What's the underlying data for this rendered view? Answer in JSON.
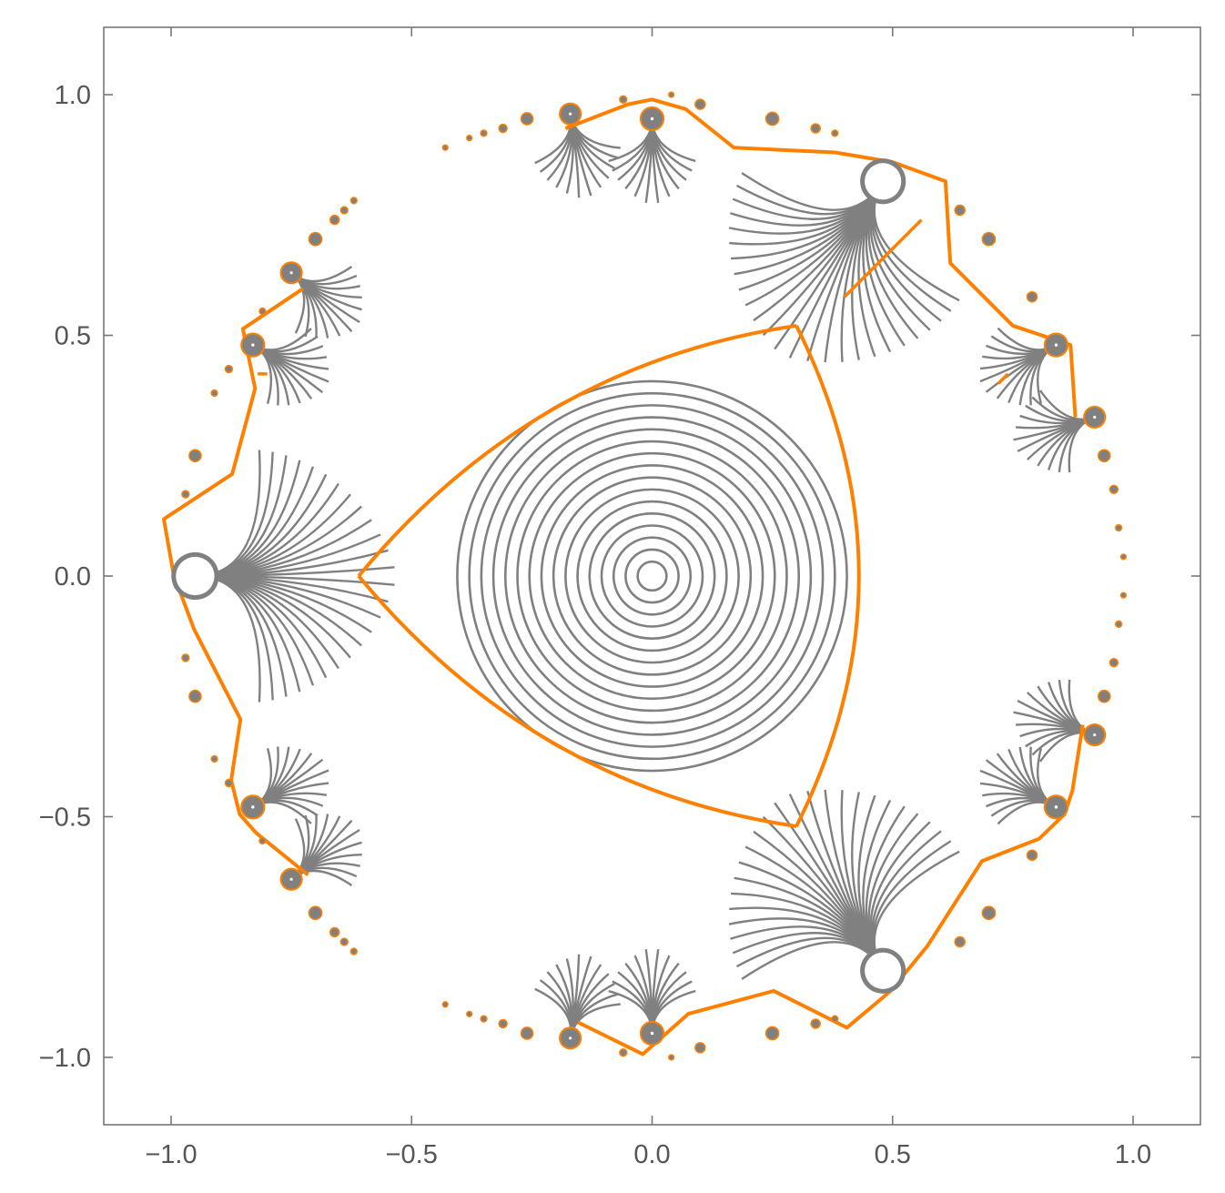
{
  "chart_data": {
    "type": "contour",
    "title": "",
    "xlabel": "",
    "ylabel": "",
    "xlim": [
      -1.14,
      1.14
    ],
    "ylim": [
      -1.14,
      1.14
    ],
    "grid": false,
    "legend": "none",
    "x_ticks": [
      {
        "value": -1.0,
        "label": "−1.0"
      },
      {
        "value": -0.5,
        "label": "−0.5"
      },
      {
        "value": 0.0,
        "label": "0.0"
      },
      {
        "value": 0.5,
        "label": "0.5"
      },
      {
        "value": 1.0,
        "label": "1.0"
      }
    ],
    "y_ticks": [
      {
        "value": 1.0,
        "label": "1.0"
      },
      {
        "value": 0.5,
        "label": "0.5"
      },
      {
        "value": 0.0,
        "label": "0.0"
      },
      {
        "value": -0.5,
        "label": "−0.5"
      },
      {
        "value": -1.0,
        "label": "−1.0"
      }
    ],
    "colors": {
      "contours": "#808080",
      "separatrix": "#ff8000",
      "frame": "#777777"
    },
    "series": [
      {
        "role": "contour-lines",
        "color": "#808080",
        "center": [
          0.0,
          0.0
        ],
        "level_radii": [
          0.03,
          0.055,
          0.08,
          0.105,
          0.13,
          0.155,
          0.18,
          0.205,
          0.23,
          0.255,
          0.28,
          0.305,
          0.33,
          0.355,
          0.38,
          0.405
        ]
      },
      {
        "role": "separatrix-triangle",
        "color": "#ff8000",
        "vertices": [
          [
            -0.61,
            0.0
          ],
          [
            0.3,
            0.52
          ],
          [
            0.3,
            -0.52
          ]
        ],
        "edge_midpoints": [
          [
            -0.2,
            0.35
          ],
          [
            0.43,
            0.0
          ],
          [
            -0.2,
            -0.35
          ]
        ]
      },
      {
        "role": "boundary-curve",
        "color": "#ff8000",
        "points": [
          [
            -0.18,
            0.93
          ],
          [
            -0.05,
            0.98
          ],
          [
            0.0,
            0.99
          ],
          [
            0.07,
            0.97
          ],
          [
            0.17,
            0.89
          ],
          [
            0.38,
            0.88
          ],
          [
            0.5,
            0.86
          ],
          [
            0.61,
            0.82
          ],
          [
            0.62,
            0.65
          ],
          [
            0.75,
            0.52
          ],
          [
            0.87,
            0.48
          ],
          [
            0.88,
            0.33
          ]
        ]
      },
      {
        "role": "rotation-mark",
        "color": "#ff8000",
        "points": [
          [
            -0.82,
            0.42
          ],
          [
            -0.8,
            0.42
          ],
          [
            0.56,
            0.74
          ],
          [
            0.4,
            0.58
          ],
          [
            0.74,
            0.42
          ],
          [
            0.72,
            0.4
          ]
        ]
      }
    ],
    "points": [
      {
        "x": -0.95,
        "y": 0.0,
        "r": 0.04,
        "kind": "hole"
      },
      {
        "x": 0.48,
        "y": 0.82,
        "r": 0.038,
        "kind": "hole"
      },
      {
        "x": 0.48,
        "y": -0.82,
        "r": 0.038,
        "kind": "hole"
      },
      {
        "x": 0.0,
        "y": 0.95,
        "r": 0.022,
        "kind": "blob"
      },
      {
        "x": 0.0,
        "y": -0.95,
        "r": 0.022,
        "kind": "blob"
      },
      {
        "x": -0.83,
        "y": 0.48,
        "r": 0.022,
        "kind": "blob"
      },
      {
        "x": -0.83,
        "y": -0.48,
        "r": 0.022,
        "kind": "blob"
      },
      {
        "x": 0.84,
        "y": 0.48,
        "r": 0.022,
        "kind": "blob"
      },
      {
        "x": 0.84,
        "y": -0.48,
        "r": 0.022,
        "kind": "blob"
      },
      {
        "x": -0.75,
        "y": 0.63,
        "r": 0.02,
        "kind": "blob"
      },
      {
        "x": -0.75,
        "y": -0.63,
        "r": 0.02,
        "kind": "blob"
      },
      {
        "x": -0.17,
        "y": 0.96,
        "r": 0.02,
        "kind": "blob"
      },
      {
        "x": -0.17,
        "y": -0.96,
        "r": 0.02,
        "kind": "blob"
      },
      {
        "x": 0.92,
        "y": 0.33,
        "r": 0.02,
        "kind": "blob"
      },
      {
        "x": 0.92,
        "y": -0.33,
        "r": 0.02,
        "kind": "blob"
      },
      {
        "x": -0.7,
        "y": 0.7,
        "r": 0.012,
        "kind": "dot"
      },
      {
        "x": -0.7,
        "y": -0.7,
        "r": 0.012,
        "kind": "dot"
      },
      {
        "x": -0.66,
        "y": 0.74,
        "r": 0.008,
        "kind": "dot"
      },
      {
        "x": -0.66,
        "y": -0.74,
        "r": 0.008,
        "kind": "dot"
      },
      {
        "x": -0.64,
        "y": 0.76,
        "r": 0.006,
        "kind": "dot"
      },
      {
        "x": -0.64,
        "y": -0.76,
        "r": 0.006,
        "kind": "dot"
      },
      {
        "x": -0.62,
        "y": 0.78,
        "r": 0.005,
        "kind": "dot"
      },
      {
        "x": -0.62,
        "y": -0.78,
        "r": 0.005,
        "kind": "dot"
      },
      {
        "x": -0.26,
        "y": 0.95,
        "r": 0.011,
        "kind": "dot"
      },
      {
        "x": -0.26,
        "y": -0.95,
        "r": 0.011,
        "kind": "dot"
      },
      {
        "x": -0.31,
        "y": 0.93,
        "r": 0.007,
        "kind": "dot"
      },
      {
        "x": -0.31,
        "y": -0.93,
        "r": 0.007,
        "kind": "dot"
      },
      {
        "x": -0.35,
        "y": 0.92,
        "r": 0.005,
        "kind": "dot"
      },
      {
        "x": -0.35,
        "y": -0.92,
        "r": 0.005,
        "kind": "dot"
      },
      {
        "x": -0.38,
        "y": 0.91,
        "r": 0.004,
        "kind": "dot"
      },
      {
        "x": -0.38,
        "y": -0.91,
        "r": 0.004,
        "kind": "dot"
      },
      {
        "x": -0.43,
        "y": 0.89,
        "r": 0.004,
        "kind": "dot"
      },
      {
        "x": -0.43,
        "y": -0.89,
        "r": 0.004,
        "kind": "dot"
      },
      {
        "x": 0.1,
        "y": 0.98,
        "r": 0.009,
        "kind": "dot"
      },
      {
        "x": 0.1,
        "y": -0.98,
        "r": 0.009,
        "kind": "dot"
      },
      {
        "x": 0.25,
        "y": 0.95,
        "r": 0.012,
        "kind": "dot"
      },
      {
        "x": 0.25,
        "y": -0.95,
        "r": 0.012,
        "kind": "dot"
      },
      {
        "x": 0.34,
        "y": 0.93,
        "r": 0.008,
        "kind": "dot"
      },
      {
        "x": 0.34,
        "y": -0.93,
        "r": 0.008,
        "kind": "dot"
      },
      {
        "x": 0.38,
        "y": 0.92,
        "r": 0.005,
        "kind": "dot"
      },
      {
        "x": 0.38,
        "y": -0.92,
        "r": 0.005,
        "kind": "dot"
      },
      {
        "x": 0.64,
        "y": 0.76,
        "r": 0.009,
        "kind": "dot"
      },
      {
        "x": 0.64,
        "y": -0.76,
        "r": 0.009,
        "kind": "dot"
      },
      {
        "x": 0.7,
        "y": 0.7,
        "r": 0.012,
        "kind": "dot"
      },
      {
        "x": 0.7,
        "y": -0.7,
        "r": 0.012,
        "kind": "dot"
      },
      {
        "x": 0.79,
        "y": 0.58,
        "r": 0.009,
        "kind": "dot"
      },
      {
        "x": 0.79,
        "y": -0.58,
        "r": 0.009,
        "kind": "dot"
      },
      {
        "x": 0.94,
        "y": 0.25,
        "r": 0.011,
        "kind": "dot"
      },
      {
        "x": 0.94,
        "y": -0.25,
        "r": 0.011,
        "kind": "dot"
      },
      {
        "x": 0.96,
        "y": 0.18,
        "r": 0.007,
        "kind": "dot"
      },
      {
        "x": 0.96,
        "y": -0.18,
        "r": 0.007,
        "kind": "dot"
      },
      {
        "x": 0.97,
        "y": 0.1,
        "r": 0.005,
        "kind": "dot"
      },
      {
        "x": 0.97,
        "y": -0.1,
        "r": 0.005,
        "kind": "dot"
      },
      {
        "x": 0.98,
        "y": 0.04,
        "r": 0.004,
        "kind": "dot"
      },
      {
        "x": 0.98,
        "y": -0.04,
        "r": 0.004,
        "kind": "dot"
      },
      {
        "x": -0.95,
        "y": 0.25,
        "r": 0.011,
        "kind": "dot"
      },
      {
        "x": -0.95,
        "y": -0.25,
        "r": 0.011,
        "kind": "dot"
      },
      {
        "x": -0.97,
        "y": 0.17,
        "r": 0.006,
        "kind": "dot"
      },
      {
        "x": -0.97,
        "y": -0.17,
        "r": 0.006,
        "kind": "dot"
      },
      {
        "x": -0.88,
        "y": 0.43,
        "r": 0.006,
        "kind": "dot"
      },
      {
        "x": -0.88,
        "y": -0.43,
        "r": 0.006,
        "kind": "dot"
      },
      {
        "x": -0.91,
        "y": 0.38,
        "r": 0.005,
        "kind": "dot"
      },
      {
        "x": -0.91,
        "y": -0.38,
        "r": 0.005,
        "kind": "dot"
      },
      {
        "x": -0.81,
        "y": 0.55,
        "r": 0.005,
        "kind": "dot"
      },
      {
        "x": -0.81,
        "y": -0.55,
        "r": 0.005,
        "kind": "dot"
      },
      {
        "x": -0.06,
        "y": 0.99,
        "r": 0.006,
        "kind": "dot"
      },
      {
        "x": -0.06,
        "y": -0.99,
        "r": 0.006,
        "kind": "dot"
      },
      {
        "x": 0.04,
        "y": 1.0,
        "r": 0.004,
        "kind": "dot"
      },
      {
        "x": 0.04,
        "y": -1.0,
        "r": 0.004,
        "kind": "dot"
      }
    ]
  }
}
